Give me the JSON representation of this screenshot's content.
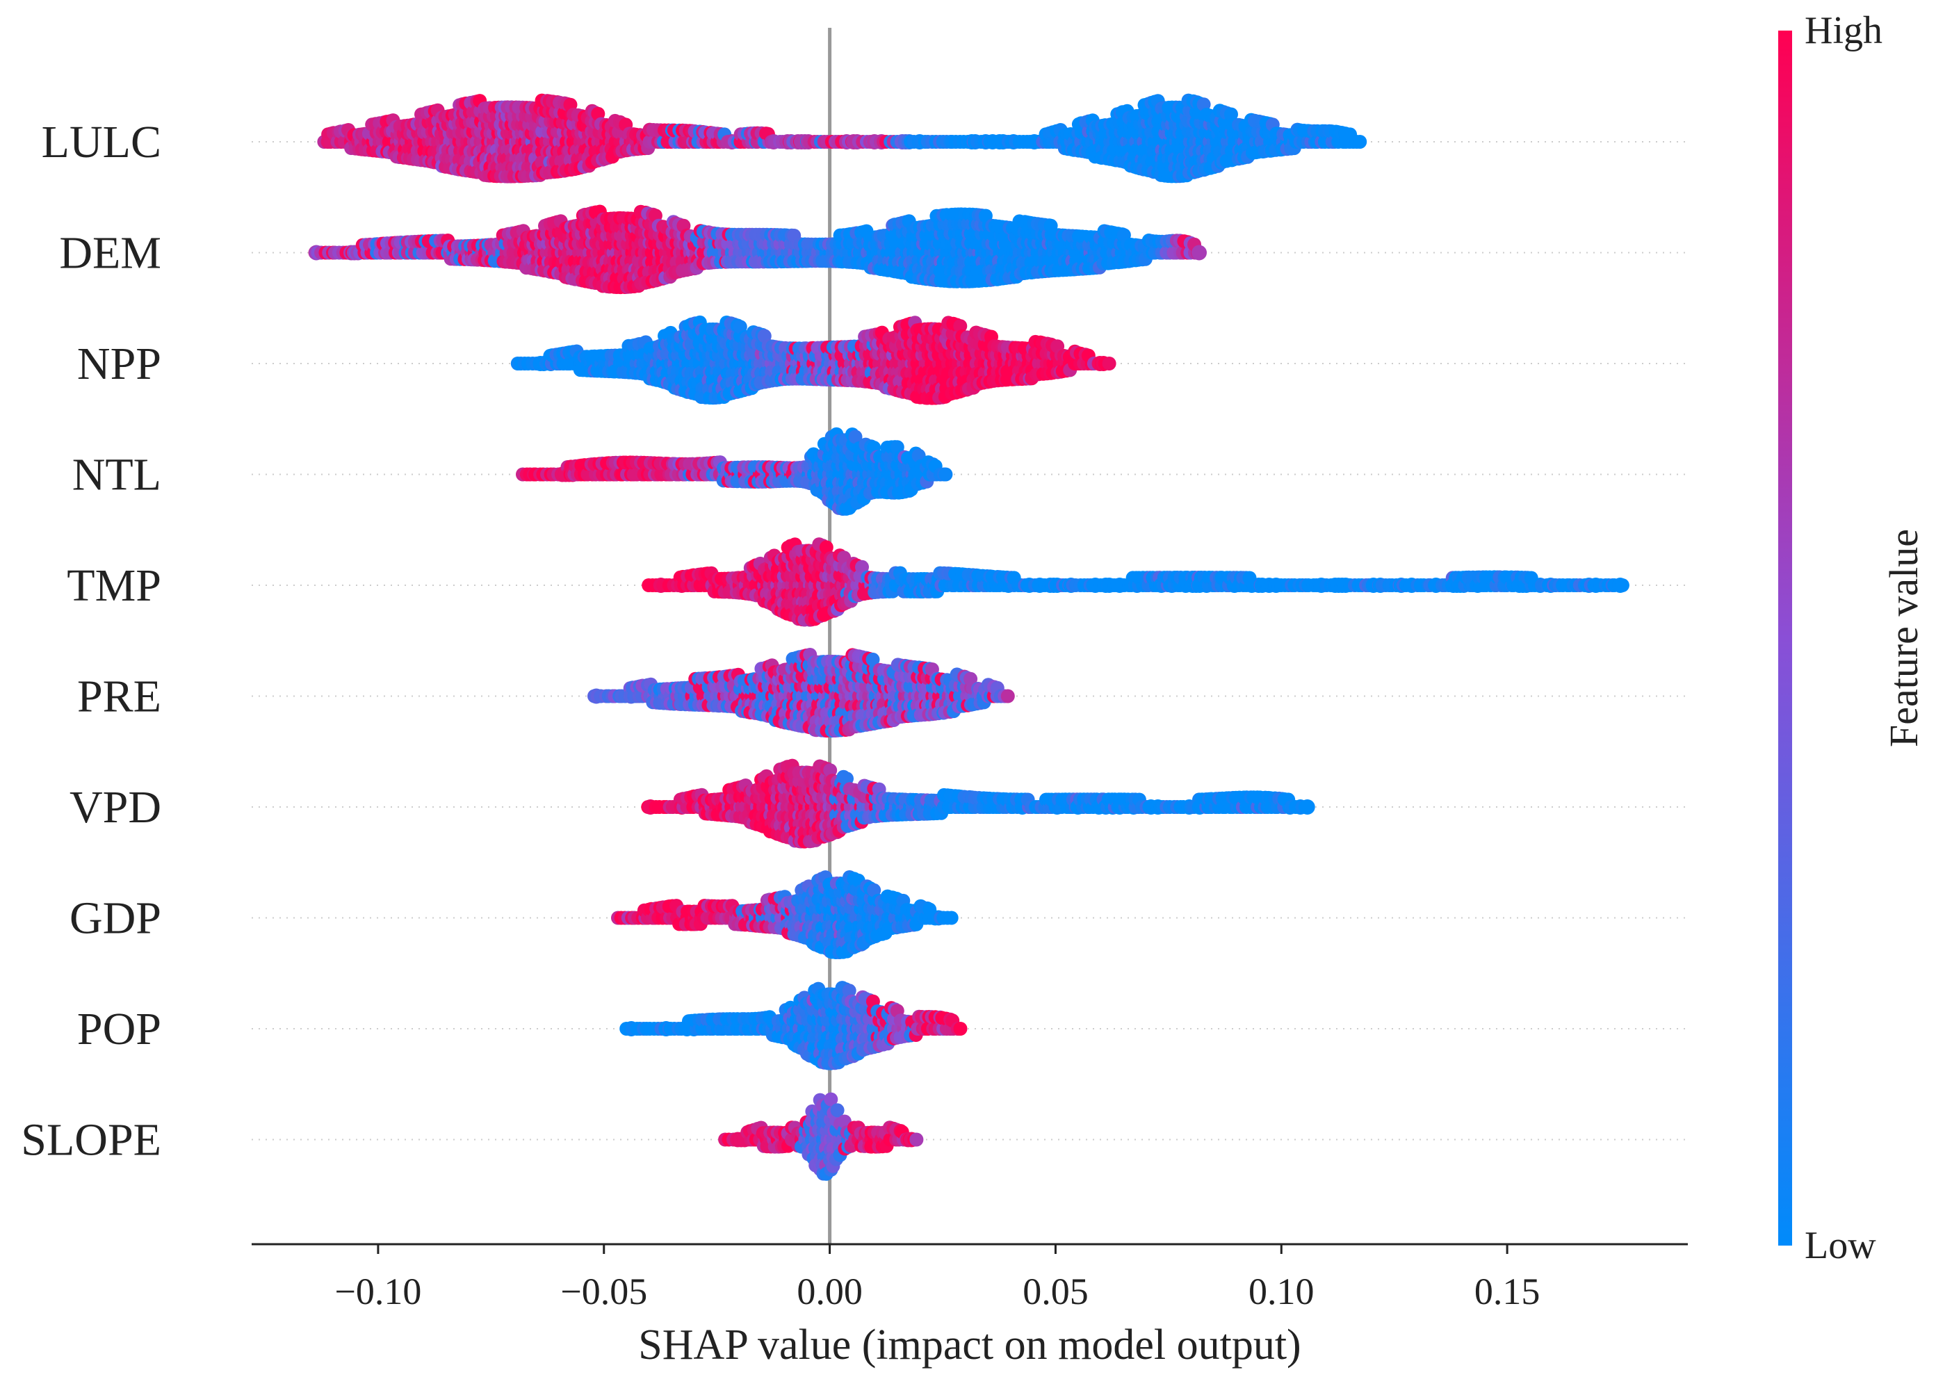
{
  "chart_data": {
    "type": "scatter",
    "subtype": "shap-beeswarm",
    "title": "",
    "xlabel": "SHAP value (impact on model output)",
    "ylabel": "",
    "xlim": [
      -0.128,
      0.19
    ],
    "xticks": [
      -0.1,
      -0.05,
      0.0,
      0.05,
      0.1,
      0.15
    ],
    "xtick_labels": [
      "−0.10",
      "−0.05",
      "0.00",
      "0.05",
      "0.10",
      "0.15"
    ],
    "zero_line": 0.0,
    "colorbar": {
      "label": "Feature value",
      "high_label": "High",
      "low_label": "Low",
      "high_color": "#ff0052",
      "mid_color": "#8a4fd6",
      "low_color": "#008bfb"
    },
    "features": [
      {
        "name": "LULC",
        "min": -0.112,
        "max": 0.118,
        "clusters": [
          {
            "center": -0.073,
            "spread": 0.013,
            "amp": 1.0,
            "value": 0.78
          },
          {
            "center": -0.055,
            "spread": 0.008,
            "amp": 0.4,
            "value": 0.9
          },
          {
            "center": -0.098,
            "spread": 0.01,
            "amp": 0.25,
            "value": 0.85
          },
          {
            "center": -0.032,
            "spread": 0.008,
            "amp": 0.18,
            "value": 0.7
          },
          {
            "center": -0.015,
            "spread": 0.004,
            "amp": 0.12,
            "value": 0.65
          },
          {
            "center": 0.076,
            "spread": 0.009,
            "amp": 1.0,
            "value": 0.0
          },
          {
            "center": 0.058,
            "spread": 0.007,
            "amp": 0.3,
            "value": 0.0
          },
          {
            "center": 0.095,
            "spread": 0.009,
            "amp": 0.3,
            "value": 0.0
          },
          {
            "center": 0.112,
            "spread": 0.004,
            "amp": 0.12,
            "value": 0.0
          }
        ]
      },
      {
        "name": "DEM",
        "min": -0.114,
        "max": 0.082,
        "clusters": [
          {
            "center": -0.044,
            "spread": 0.01,
            "amp": 1.0,
            "value": 0.9
          },
          {
            "center": -0.085,
            "spread": 0.018,
            "amp": 0.22,
            "value": 0.6
          },
          {
            "center": -0.06,
            "spread": 0.01,
            "amp": 0.4,
            "value": 0.85
          },
          {
            "center": -0.015,
            "spread": 0.012,
            "amp": 0.35,
            "value": 0.25
          },
          {
            "center": 0.029,
            "spread": 0.016,
            "amp": 1.0,
            "value": 0.0
          },
          {
            "center": 0.06,
            "spread": 0.01,
            "amp": 0.35,
            "value": 0.0
          },
          {
            "center": 0.078,
            "spread": 0.003,
            "amp": 0.15,
            "value": 0.95
          }
        ]
      },
      {
        "name": "NPP",
        "min": -0.069,
        "max": 0.062,
        "clusters": [
          {
            "center": -0.026,
            "spread": 0.009,
            "amp": 1.0,
            "value": 0.05
          },
          {
            "center": -0.05,
            "spread": 0.01,
            "amp": 0.25,
            "value": 0.0
          },
          {
            "center": 0.0,
            "spread": 0.01,
            "amp": 0.45,
            "value": 0.5
          },
          {
            "center": 0.023,
            "spread": 0.009,
            "amp": 1.0,
            "value": 0.95
          },
          {
            "center": 0.045,
            "spread": 0.008,
            "amp": 0.4,
            "value": 0.95
          }
        ]
      },
      {
        "name": "NTL",
        "min": -0.068,
        "max": 0.026,
        "clusters": [
          {
            "center": 0.003,
            "spread": 0.004,
            "amp": 0.75,
            "value": 0.05
          },
          {
            "center": 0.015,
            "spread": 0.005,
            "amp": 0.45,
            "value": 0.0
          },
          {
            "center": -0.015,
            "spread": 0.01,
            "amp": 0.2,
            "value": 0.4
          },
          {
            "center": -0.045,
            "spread": 0.012,
            "amp": 0.16,
            "value": 0.9
          }
        ]
      },
      {
        "name": "TMP",
        "min": -0.04,
        "max": 0.176,
        "clusters": [
          {
            "center": -0.005,
            "spread": 0.007,
            "amp": 1.0,
            "value": 0.9
          },
          {
            "center": -0.025,
            "spread": 0.008,
            "amp": 0.2,
            "value": 0.95
          },
          {
            "center": 0.02,
            "spread": 0.012,
            "amp": 0.18,
            "value": 0.0
          },
          {
            "center": 0.08,
            "spread": 0.04,
            "amp": 0.12,
            "value": 0.0
          },
          {
            "center": 0.15,
            "spread": 0.015,
            "amp": 0.1,
            "value": 0.0
          }
        ]
      },
      {
        "name": "PRE",
        "min": -0.052,
        "max": 0.04,
        "clusters": [
          {
            "center": 0.0,
            "spread": 0.013,
            "amp": 1.0,
            "value": 0.55
          },
          {
            "center": -0.032,
            "spread": 0.01,
            "amp": 0.25,
            "value": 0.3
          },
          {
            "center": 0.025,
            "spread": 0.008,
            "amp": 0.35,
            "value": 0.45
          }
        ]
      },
      {
        "name": "VPD",
        "min": -0.04,
        "max": 0.106,
        "clusters": [
          {
            "center": -0.006,
            "spread": 0.008,
            "amp": 1.0,
            "value": 0.88
          },
          {
            "center": -0.025,
            "spread": 0.007,
            "amp": 0.22,
            "value": 0.95
          },
          {
            "center": 0.015,
            "spread": 0.012,
            "amp": 0.22,
            "value": 0.1
          },
          {
            "center": 0.06,
            "spread": 0.03,
            "amp": 0.12,
            "value": 0.0
          },
          {
            "center": 0.095,
            "spread": 0.008,
            "amp": 0.1,
            "value": 0.0
          }
        ]
      },
      {
        "name": "GDP",
        "min": -0.047,
        "max": 0.027,
        "clusters": [
          {
            "center": 0.002,
            "spread": 0.006,
            "amp": 0.9,
            "value": 0.05
          },
          {
            "center": 0.015,
            "spread": 0.006,
            "amp": 0.25,
            "value": 0.0
          },
          {
            "center": -0.012,
            "spread": 0.007,
            "amp": 0.28,
            "value": 0.6
          },
          {
            "center": -0.032,
            "spread": 0.008,
            "amp": 0.2,
            "value": 0.95
          }
        ]
      },
      {
        "name": "POP",
        "min": -0.045,
        "max": 0.029,
        "clusters": [
          {
            "center": 0.0,
            "spread": 0.006,
            "amp": 1.0,
            "value": 0.1
          },
          {
            "center": -0.022,
            "spread": 0.012,
            "amp": 0.16,
            "value": 0.0
          },
          {
            "center": 0.012,
            "spread": 0.005,
            "amp": 0.35,
            "value": 0.6
          },
          {
            "center": 0.024,
            "spread": 0.004,
            "amp": 0.18,
            "value": 0.95
          }
        ]
      },
      {
        "name": "SLOPE",
        "min": -0.023,
        "max": 0.02,
        "clusters": [
          {
            "center": -0.001,
            "spread": 0.0025,
            "amp": 0.85,
            "value": 0.3
          },
          {
            "center": -0.012,
            "spread": 0.005,
            "amp": 0.22,
            "value": 0.9
          },
          {
            "center": 0.01,
            "spread": 0.005,
            "amp": 0.22,
            "value": 0.9
          }
        ]
      }
    ]
  }
}
